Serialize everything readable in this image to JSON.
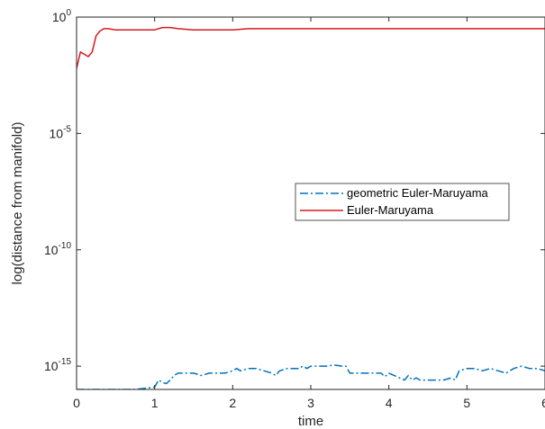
{
  "chart_data": {
    "type": "line",
    "title": "",
    "xlabel": "time",
    "ylabel": "log(distance from manifold)",
    "xlim": [
      0,
      6
    ],
    "x_ticks": [
      0,
      1,
      2,
      3,
      4,
      5,
      6
    ],
    "y_scale": "log",
    "ylim_exponent": [
      -16,
      0
    ],
    "y_ticks": [
      {
        "base": "10",
        "exp": "0",
        "value": 1
      },
      {
        "base": "10",
        "exp": "-5",
        "value": 1e-05
      },
      {
        "base": "10",
        "exp": "-10",
        "value": 1e-10
      },
      {
        "base": "10",
        "exp": "-15",
        "value": 1e-15
      }
    ],
    "grid": false,
    "legend_position": "center-right",
    "series": [
      {
        "name": "geometric Euler-Maruyama",
        "color": "#0072BD",
        "style": "dash-dot",
        "x": [
          0.0,
          0.1,
          0.3,
          0.5,
          0.65,
          0.7,
          0.75,
          1.0,
          1.05,
          1.1,
          1.15,
          1.2,
          1.25,
          1.3,
          1.4,
          1.5,
          1.6,
          1.7,
          1.8,
          1.9,
          2.0,
          2.05,
          2.1,
          2.2,
          2.3,
          2.4,
          2.5,
          2.55,
          2.6,
          2.7,
          2.8,
          2.85,
          2.9,
          2.95,
          3.0,
          3.1,
          3.2,
          3.3,
          3.4,
          3.45,
          3.5,
          3.6,
          3.7,
          3.8,
          3.9,
          3.95,
          4.0,
          4.2,
          4.25,
          4.3,
          4.35,
          4.4,
          4.5,
          4.6,
          4.7,
          4.8,
          4.85,
          4.9,
          5.0,
          5.1,
          5.2,
          5.3,
          5.4,
          5.5,
          5.6,
          5.7,
          5.8,
          5.9,
          6.0
        ],
        "y_log10": [
          -16.0,
          -16.0,
          -16.0,
          -16.0,
          -16.0,
          -16.0,
          -16.0,
          -15.9,
          -15.6,
          -15.7,
          -15.75,
          -15.6,
          -15.4,
          -15.3,
          -15.3,
          -15.3,
          -15.4,
          -15.3,
          -15.3,
          -15.3,
          -15.2,
          -15.1,
          -15.2,
          -15.1,
          -15.1,
          -15.2,
          -15.3,
          -15.4,
          -15.2,
          -15.1,
          -15.1,
          -15.1,
          -15.0,
          -15.1,
          -15.0,
          -15.0,
          -15.0,
          -14.95,
          -15.0,
          -15.0,
          -15.3,
          -15.3,
          -15.3,
          -15.3,
          -15.3,
          -15.45,
          -15.3,
          -15.6,
          -15.4,
          -15.6,
          -15.5,
          -15.6,
          -15.6,
          -15.6,
          -15.6,
          -15.5,
          -15.6,
          -15.2,
          -15.1,
          -15.1,
          -15.2,
          -15.1,
          -15.2,
          -15.3,
          -15.1,
          -15.0,
          -15.1,
          -15.1,
          -15.2
        ]
      },
      {
        "name": "Euler-Maruyama",
        "color": "#D9181E",
        "style": "solid",
        "x": [
          0.0,
          0.05,
          0.1,
          0.15,
          0.2,
          0.25,
          0.3,
          0.35,
          0.4,
          0.5,
          0.7,
          0.9,
          1.0,
          1.1,
          1.2,
          1.3,
          1.5,
          1.8,
          2.0,
          2.2,
          2.5,
          3.0,
          3.5,
          4.0,
          4.5,
          5.0,
          5.5,
          6.0
        ],
        "y_log10": [
          -2.2,
          -1.5,
          -1.6,
          -1.7,
          -1.5,
          -0.8,
          -0.6,
          -0.5,
          -0.5,
          -0.55,
          -0.55,
          -0.55,
          -0.55,
          -0.45,
          -0.45,
          -0.5,
          -0.55,
          -0.55,
          -0.55,
          -0.5,
          -0.5,
          -0.5,
          -0.5,
          -0.5,
          -0.5,
          -0.5,
          -0.5,
          -0.5
        ]
      }
    ]
  }
}
